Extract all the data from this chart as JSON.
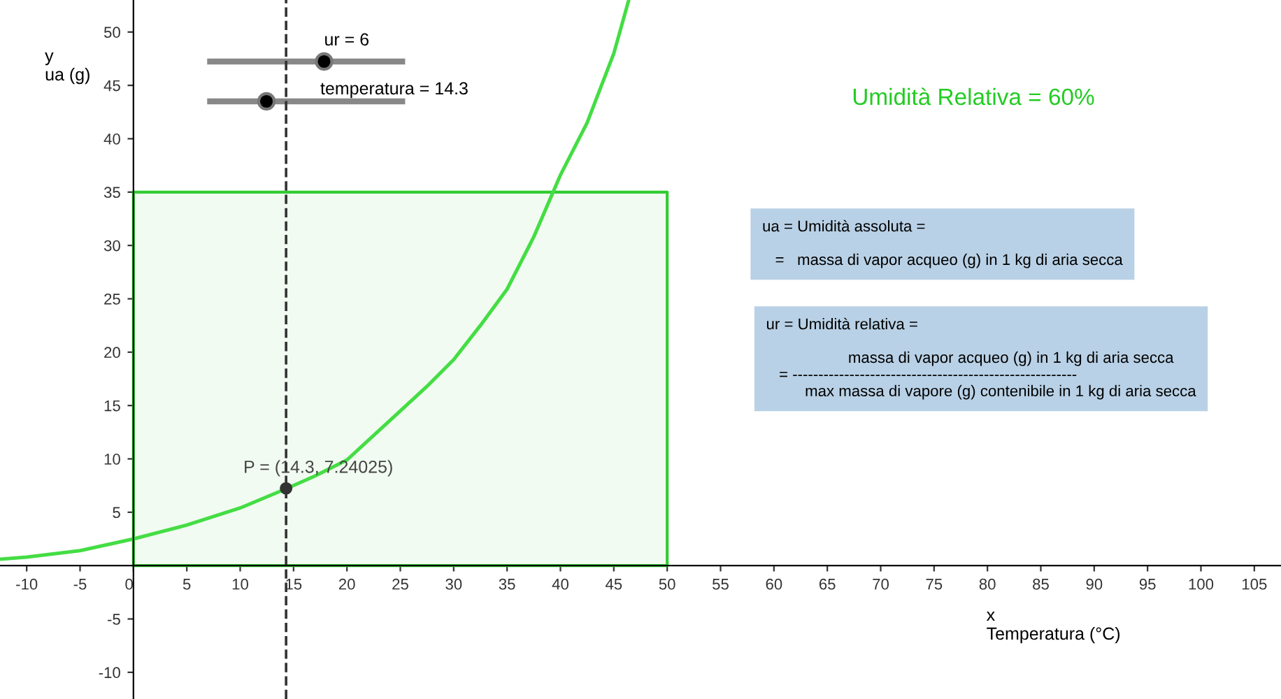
{
  "chart_data": {
    "type": "line",
    "title": "Umidità Relativa = 60%",
    "xlabel": "x\nTemperatura (°C)",
    "ylabel": "y\nua (g)",
    "series": [
      {
        "type": "area",
        "color": "#33cc33",
        "x": [
          0,
          50
        ],
        "values": [
          35,
          35
        ]
      },
      {
        "color": "#44dd44",
        "x": [
          -12.5,
          -10,
          -5,
          0,
          5,
          10,
          14.3,
          17,
          20,
          25,
          27.5,
          30,
          32.5,
          35,
          37.5,
          40,
          42.5,
          45,
          46.4
        ],
        "values": [
          0.6,
          0.8,
          1.4,
          2.5,
          3.8,
          5.4,
          7.2,
          8.4,
          9.9,
          14.5,
          16.8,
          19.3,
          22.5,
          25.9,
          30.8,
          36.6,
          41.5,
          48,
          53
        ]
      },
      {
        "type": "scatter",
        "color": "#333333",
        "x": [
          14.3
        ],
        "values": [
          7.24025
        ]
      }
    ],
    "ref_lines": [
      {
        "axis": "x",
        "value": 14.3,
        "color": "#333333",
        "line_style": "dashed"
      }
    ],
    "annotations": [
      {
        "text": "P = (14.3, 7.24025)",
        "x": 14.3,
        "y": 7.24025
      },
      "ur = 6",
      "temperatura = 14.3",
      "ua = Umidità assoluta =\n\n   =   massa di vapor acqueo (g) in 1 kg di aria secca",
      "ur = Umidità relativa =\n\n                   massa di vapor acqueo (g) in 1 kg di aria secca\n   = -------------------------------------------------------\n         max massa di vapore (g) contenibile in 1 kg di aria secca"
    ],
    "xlim": [
      -12.5,
      107.5
    ],
    "ylim": [
      -12.5,
      53
    ],
    "xticks": [
      -10,
      -5,
      0,
      5,
      10,
      15,
      20,
      25,
      30,
      35,
      40,
      45,
      50,
      55,
      60,
      65,
      70,
      75,
      80,
      85,
      90,
      95,
      100,
      105
    ],
    "yticks": [
      -10,
      -5,
      5,
      10,
      15,
      20,
      25,
      30,
      35,
      40,
      45,
      50
    ],
    "grid": false
  }
}
